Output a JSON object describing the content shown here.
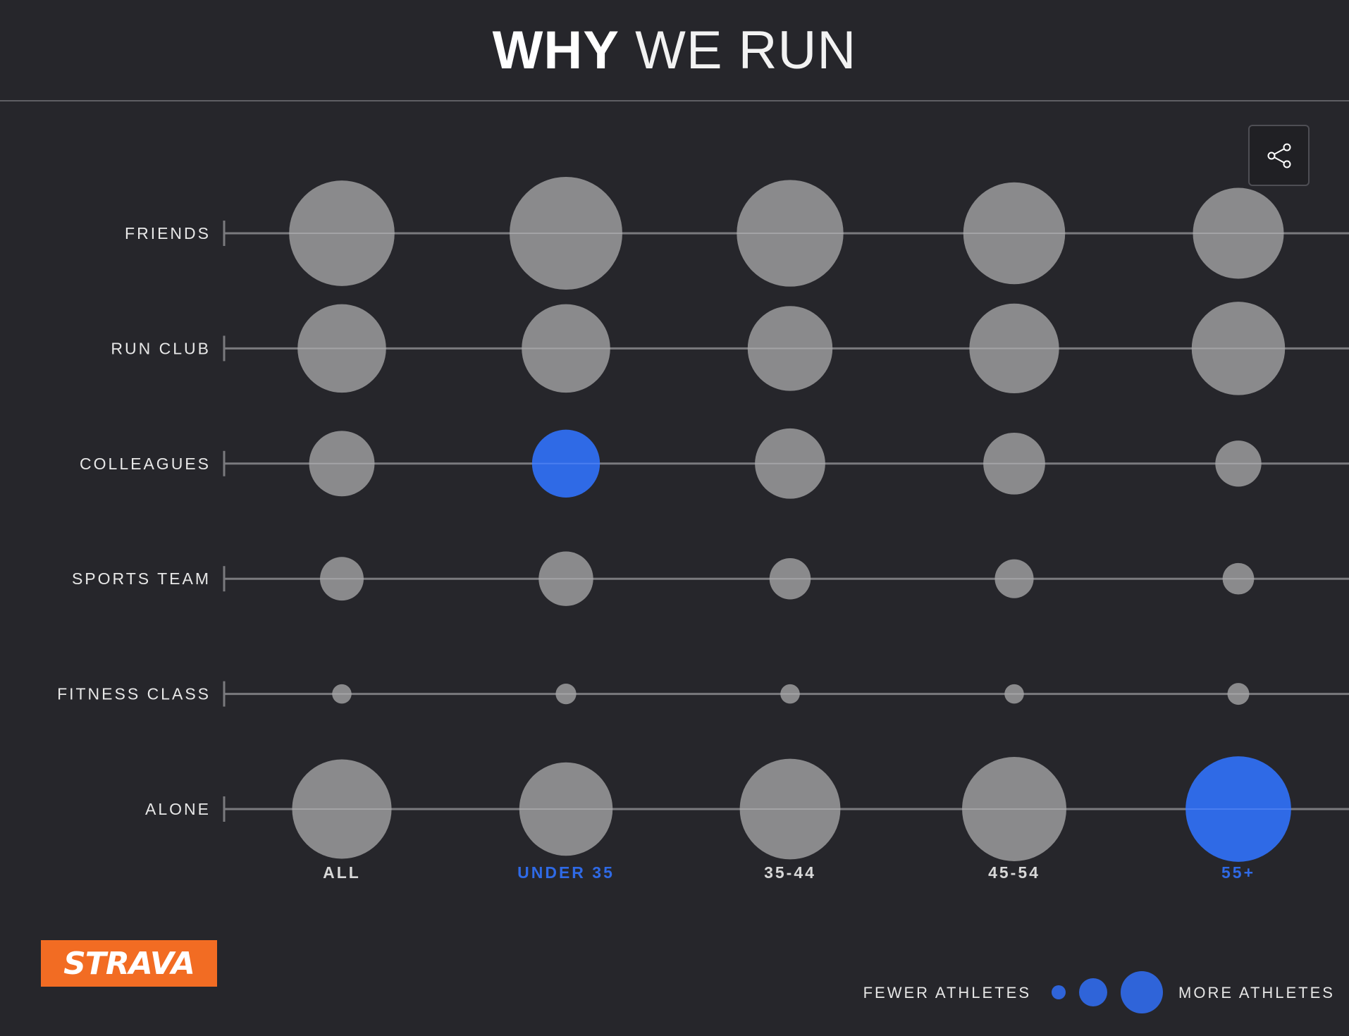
{
  "header": {
    "title_bold": "WHY",
    "title_light": "WE RUN"
  },
  "share": {
    "icon": "share-icon"
  },
  "logo": {
    "text": "STRAVA",
    "color": "#f26c23"
  },
  "legend": {
    "fewer_label": "FEWER ATHLETES",
    "more_label": "MORE ATHLETES",
    "color": "#2f64d9"
  },
  "colors": {
    "background": "#26262b",
    "bubble": "#8a8a8c",
    "highlight": "#2f6ae6",
    "line": "#7a7a7e",
    "label": "#e8e8e8"
  },
  "chart_data": {
    "type": "bubble-matrix",
    "rows": [
      "FRIENDS",
      "RUN CLUB",
      "COLLEAGUES",
      "SPORTS TEAM",
      "FITNESS CLASS",
      "ALONE"
    ],
    "columns": [
      "ALL",
      "UNDER 35",
      "35-44",
      "45-54",
      "55+"
    ],
    "highlighted_columns": [
      "UNDER 35",
      "55+"
    ],
    "highlighted_cells": [
      {
        "row": "COLLEAGUES",
        "column": "UNDER 35"
      },
      {
        "row": "ALONE",
        "column": "55+"
      }
    ],
    "relative_sizes": [
      [
        0.87,
        0.93,
        0.88,
        0.84,
        0.75
      ],
      [
        0.73,
        0.73,
        0.7,
        0.74,
        0.77
      ],
      [
        0.54,
        0.56,
        0.58,
        0.51,
        0.38
      ],
      [
        0.36,
        0.45,
        0.34,
        0.32,
        0.26
      ],
      [
        0.16,
        0.17,
        0.16,
        0.16,
        0.18
      ],
      [
        0.82,
        0.77,
        0.83,
        0.86,
        0.87
      ]
    ]
  }
}
